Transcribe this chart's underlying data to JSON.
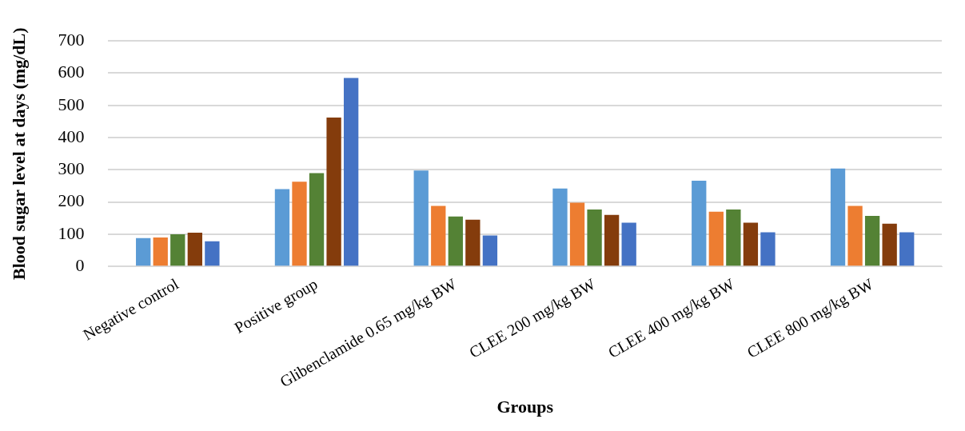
{
  "chart_data": {
    "type": "bar",
    "xlabel": "Groups",
    "ylabel": "Blood sugar level at days (mg/dL)",
    "categories": [
      "Negative control",
      "Positive group",
      "Glibenclamide 0.65 mg/kg BW",
      "CLEE 200 mg/kg BW",
      "CLEE 400 mg/kg BW",
      "CLEE 800 mg/kg BW"
    ],
    "series": [
      {
        "color": "#5b9bd5",
        "values": [
          88,
          240,
          298,
          242,
          266,
          304
        ]
      },
      {
        "color": "#ed7d31",
        "values": [
          90,
          263,
          188,
          198,
          170,
          188
        ]
      },
      {
        "color": "#548235",
        "values": [
          100,
          290,
          155,
          177,
          177,
          157
        ]
      },
      {
        "color": "#843c0c",
        "values": [
          105,
          462,
          145,
          160,
          136,
          133
        ]
      },
      {
        "color": "#4472c4",
        "values": [
          78,
          585,
          96,
          136,
          106,
          106
        ]
      }
    ],
    "ylim": [
      0,
      700
    ],
    "yticks": [
      0,
      100,
      200,
      300,
      400,
      500,
      600,
      700
    ],
    "grid": "y",
    "legend": false
  }
}
